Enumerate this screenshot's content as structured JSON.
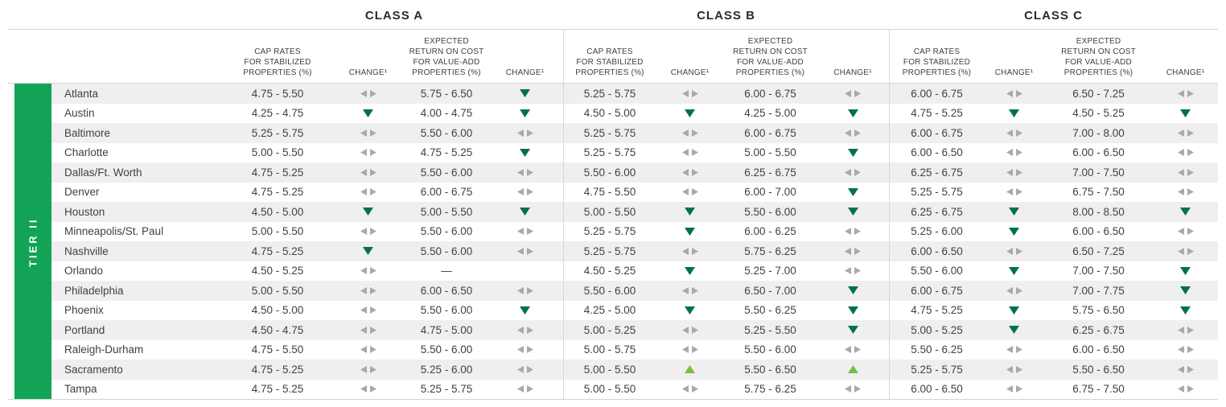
{
  "tier_label": "TIER II",
  "sections": [
    {
      "label": "CLASS A"
    },
    {
      "label": "CLASS B"
    },
    {
      "label": "CLASS C"
    }
  ],
  "column_headers": {
    "cap_rates": "CAP RATES\nFOR STABILIZED\nPROPERTIES (%)",
    "change": "CHANGE¹",
    "expected_return": "EXPECTED\nRETURN ON COST\nFOR VALUE-ADD\nPROPERTIES (%)"
  },
  "change_icon_legend": {
    "flat": "no-change-left-right-arrows",
    "down": "decrease-down-triangle",
    "up": "increase-up-triangle",
    "none": "empty"
  },
  "colors": {
    "tier_green": "#12a357",
    "decrease_green": "#00714b",
    "increase_green": "#72bf44",
    "no_change_gray": "#a7a9ac",
    "stripe_gray": "#efeff0",
    "rule_gray": "#d1d3d4",
    "text_dark": "#414042"
  },
  "rows": [
    {
      "city": "Atlanta",
      "a": {
        "cap": "4.75 - 5.50",
        "cap_chg": "flat",
        "roc": "5.75 - 6.50",
        "roc_chg": "down"
      },
      "b": {
        "cap": "5.25 - 5.75",
        "cap_chg": "flat",
        "roc": "6.00 - 6.75",
        "roc_chg": "flat"
      },
      "c": {
        "cap": "6.00 - 6.75",
        "cap_chg": "flat",
        "roc": "6.50 - 7.25",
        "roc_chg": "flat"
      }
    },
    {
      "city": "Austin",
      "a": {
        "cap": "4.25 - 4.75",
        "cap_chg": "down",
        "roc": "4.00 - 4.75",
        "roc_chg": "down"
      },
      "b": {
        "cap": "4.50 - 5.00",
        "cap_chg": "down",
        "roc": "4.25 - 5.00",
        "roc_chg": "down"
      },
      "c": {
        "cap": "4.75 - 5.25",
        "cap_chg": "down",
        "roc": "4.50 - 5.25",
        "roc_chg": "down"
      }
    },
    {
      "city": "Baltimore",
      "a": {
        "cap": "5.25 - 5.75",
        "cap_chg": "flat",
        "roc": "5.50 - 6.00",
        "roc_chg": "flat"
      },
      "b": {
        "cap": "5.25 - 5.75",
        "cap_chg": "flat",
        "roc": "6.00 - 6.75",
        "roc_chg": "flat"
      },
      "c": {
        "cap": "6.00 - 6.75",
        "cap_chg": "flat",
        "roc": "7.00 - 8.00",
        "roc_chg": "flat"
      }
    },
    {
      "city": "Charlotte",
      "a": {
        "cap": "5.00 - 5.50",
        "cap_chg": "flat",
        "roc": "4.75 - 5.25",
        "roc_chg": "down"
      },
      "b": {
        "cap": "5.25 - 5.75",
        "cap_chg": "flat",
        "roc": "5.00 - 5.50",
        "roc_chg": "down"
      },
      "c": {
        "cap": "6.00 - 6.50",
        "cap_chg": "flat",
        "roc": "6.00 - 6.50",
        "roc_chg": "flat"
      }
    },
    {
      "city": "Dallas/Ft. Worth",
      "a": {
        "cap": "4.75 - 5.25",
        "cap_chg": "flat",
        "roc": "5.50 - 6.00",
        "roc_chg": "flat"
      },
      "b": {
        "cap": "5.50 - 6.00",
        "cap_chg": "flat",
        "roc": "6.25 - 6.75",
        "roc_chg": "flat"
      },
      "c": {
        "cap": "6.25 - 6.75",
        "cap_chg": "flat",
        "roc": "7.00 - 7.50",
        "roc_chg": "flat"
      }
    },
    {
      "city": "Denver",
      "a": {
        "cap": "4.75 - 5.25",
        "cap_chg": "flat",
        "roc": "6.00 - 6.75",
        "roc_chg": "flat"
      },
      "b": {
        "cap": "4.75 - 5.50",
        "cap_chg": "flat",
        "roc": "6.00 - 7.00",
        "roc_chg": "down"
      },
      "c": {
        "cap": "5.25 - 5.75",
        "cap_chg": "flat",
        "roc": "6.75 - 7.50",
        "roc_chg": "flat"
      }
    },
    {
      "city": "Houston",
      "a": {
        "cap": "4.50 - 5.00",
        "cap_chg": "down",
        "roc": "5.00 - 5.50",
        "roc_chg": "down"
      },
      "b": {
        "cap": "5.00 - 5.50",
        "cap_chg": "down",
        "roc": "5.50 - 6.00",
        "roc_chg": "down"
      },
      "c": {
        "cap": "6.25 - 6.75",
        "cap_chg": "down",
        "roc": "8.00 - 8.50",
        "roc_chg": "down"
      }
    },
    {
      "city": "Minneapolis/St. Paul",
      "a": {
        "cap": "5.00 - 5.50",
        "cap_chg": "flat",
        "roc": "5.50 - 6.00",
        "roc_chg": "flat"
      },
      "b": {
        "cap": "5.25 - 5.75",
        "cap_chg": "down",
        "roc": "6.00 - 6.25",
        "roc_chg": "flat"
      },
      "c": {
        "cap": "5.25 - 6.00",
        "cap_chg": "down",
        "roc": "6.00 - 6.50",
        "roc_chg": "flat"
      }
    },
    {
      "city": "Nashville",
      "a": {
        "cap": "4.75 - 5.25",
        "cap_chg": "down",
        "roc": "5.50 - 6.00",
        "roc_chg": "flat"
      },
      "b": {
        "cap": "5.25 - 5.75",
        "cap_chg": "flat",
        "roc": "5.75 - 6.25",
        "roc_chg": "flat"
      },
      "c": {
        "cap": "6.00 - 6.50",
        "cap_chg": "flat",
        "roc": "6.50 - 7.25",
        "roc_chg": "flat"
      }
    },
    {
      "city": "Orlando",
      "a": {
        "cap": "4.50 - 5.25",
        "cap_chg": "flat",
        "roc": "—",
        "roc_chg": "none"
      },
      "b": {
        "cap": "4.50 - 5.25",
        "cap_chg": "down",
        "roc": "5.25 - 7.00",
        "roc_chg": "flat"
      },
      "c": {
        "cap": "5.50 - 6.00",
        "cap_chg": "down",
        "roc": "7.00 - 7.50",
        "roc_chg": "down"
      }
    },
    {
      "city": "Philadelphia",
      "a": {
        "cap": "5.00 - 5.50",
        "cap_chg": "flat",
        "roc": "6.00 - 6.50",
        "roc_chg": "flat"
      },
      "b": {
        "cap": "5.50 - 6.00",
        "cap_chg": "flat",
        "roc": "6.50 - 7.00",
        "roc_chg": "down"
      },
      "c": {
        "cap": "6.00 - 6.75",
        "cap_chg": "flat",
        "roc": "7.00 - 7.75",
        "roc_chg": "down"
      }
    },
    {
      "city": "Phoenix",
      "a": {
        "cap": "4.50 - 5.00",
        "cap_chg": "flat",
        "roc": "5.50 - 6.00",
        "roc_chg": "down"
      },
      "b": {
        "cap": "4.25 - 5.00",
        "cap_chg": "down",
        "roc": "5.50 - 6.25",
        "roc_chg": "down"
      },
      "c": {
        "cap": "4.75 - 5.25",
        "cap_chg": "down",
        "roc": "5.75 - 6.50",
        "roc_chg": "down"
      }
    },
    {
      "city": "Portland",
      "a": {
        "cap": "4.50 - 4.75",
        "cap_chg": "flat",
        "roc": "4.75 - 5.00",
        "roc_chg": "flat"
      },
      "b": {
        "cap": "5.00 - 5.25",
        "cap_chg": "flat",
        "roc": "5.25 - 5.50",
        "roc_chg": "down"
      },
      "c": {
        "cap": "5.00 - 5.25",
        "cap_chg": "down",
        "roc": "6.25 - 6.75",
        "roc_chg": "flat"
      }
    },
    {
      "city": "Raleigh-Durham",
      "a": {
        "cap": "4.75 - 5.50",
        "cap_chg": "flat",
        "roc": "5.50 - 6.00",
        "roc_chg": "flat"
      },
      "b": {
        "cap": "5.00 - 5.75",
        "cap_chg": "flat",
        "roc": "5.50 - 6.00",
        "roc_chg": "flat"
      },
      "c": {
        "cap": "5.50 - 6.25",
        "cap_chg": "flat",
        "roc": "6.00 - 6.50",
        "roc_chg": "flat"
      }
    },
    {
      "city": "Sacramento",
      "a": {
        "cap": "4.75 - 5.25",
        "cap_chg": "flat",
        "roc": "5.25 - 6.00",
        "roc_chg": "flat"
      },
      "b": {
        "cap": "5.00 - 5.50",
        "cap_chg": "up",
        "roc": "5.50 - 6.50",
        "roc_chg": "up"
      },
      "c": {
        "cap": "5.25 - 5.75",
        "cap_chg": "flat",
        "roc": "5.50 - 6.50",
        "roc_chg": "flat"
      }
    },
    {
      "city": "Tampa",
      "a": {
        "cap": "4.75 - 5.25",
        "cap_chg": "flat",
        "roc": "5.25 - 5.75",
        "roc_chg": "flat"
      },
      "b": {
        "cap": "5.00 - 5.50",
        "cap_chg": "flat",
        "roc": "5.75 - 6.25",
        "roc_chg": "flat"
      },
      "c": {
        "cap": "6.00 - 6.50",
        "cap_chg": "flat",
        "roc": "6.75 - 7.50",
        "roc_chg": "flat"
      }
    }
  ]
}
